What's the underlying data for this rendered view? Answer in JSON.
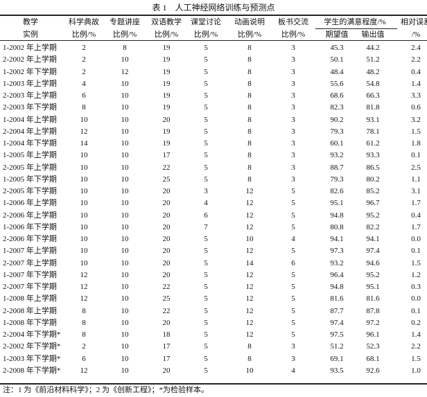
{
  "title": "表 1　人工神经网络训练与预测点",
  "table": {
    "header_row1": [
      "教学",
      "科学典故",
      "专题讲座",
      "双语教学",
      "课堂讨论",
      "动画说明",
      "板书交流",
      "学生的满意程度/%",
      "相对误差"
    ],
    "header_row2": [
      "实例",
      "比例/%",
      "比例/%",
      "比例/%",
      "比例/%",
      "比例/%",
      "比例/%",
      "期望值",
      "输出值",
      "/%"
    ],
    "rows": [
      [
        "1-2002 年上学期",
        "2",
        "8",
        "19",
        "5",
        "8",
        "3",
        "45.3",
        "44.2",
        "2.4"
      ],
      [
        "2-2002 年上学期",
        "2",
        "10",
        "19",
        "5",
        "8",
        "3",
        "50.1",
        "51.2",
        "2.2"
      ],
      [
        "1-2002 年下学期",
        "2",
        "12",
        "19",
        "5",
        "8",
        "3",
        "48.4",
        "48.2",
        "0.4"
      ],
      [
        "1-2003 年上学期",
        "4",
        "10",
        "19",
        "5",
        "8",
        "3",
        "55.6",
        "54.8",
        "1.4"
      ],
      [
        "2-2003 年上学期",
        "6",
        "10",
        "19",
        "5",
        "8",
        "3",
        "68.6",
        "66.3",
        "3.3"
      ],
      [
        "2-2003 年下学期",
        "8",
        "10",
        "19",
        "5",
        "8",
        "3",
        "82.3",
        "81.8",
        "0.6"
      ],
      [
        "1-2004 年上学期",
        "10",
        "10",
        "20",
        "5",
        "8",
        "3",
        "90.2",
        "93.1",
        "3.2"
      ],
      [
        "2-2004 年上学期",
        "12",
        "10",
        "19",
        "5",
        "8",
        "3",
        "79.3",
        "78.1",
        "1.5"
      ],
      [
        "1-2004 年下学期",
        "14",
        "10",
        "19",
        "5",
        "8",
        "3",
        "60.1",
        "61.2",
        "1.8"
      ],
      [
        "1-2005 年上学期",
        "10",
        "10",
        "17",
        "5",
        "8",
        "3",
        "93.2",
        "93.3",
        "0.1"
      ],
      [
        "2-2005 年上学期",
        "10",
        "10",
        "22",
        "5",
        "8",
        "3",
        "88.7",
        "86.5",
        "2.5"
      ],
      [
        "1-2005 年下学期",
        "10",
        "10",
        "25",
        "5",
        "8",
        "3",
        "79.3",
        "80.2",
        "1.1"
      ],
      [
        "2-2005 年下学期",
        "10",
        "10",
        "20",
        "3",
        "12",
        "5",
        "82.6",
        "85.2",
        "3.1"
      ],
      [
        "1-2006 年上学期",
        "10",
        "10",
        "20",
        "4",
        "12",
        "5",
        "95.1",
        "96.7",
        "1.7"
      ],
      [
        "2-2006 年上学期",
        "10",
        "10",
        "20",
        "6",
        "12",
        "5",
        "94.8",
        "95.2",
        "0.4"
      ],
      [
        "1-2006 年下学期",
        "10",
        "10",
        "20",
        "7",
        "12",
        "5",
        "80.8",
        "82.2",
        "1.7"
      ],
      [
        "2-2006 年下学期",
        "10",
        "10",
        "20",
        "5",
        "10",
        "4",
        "94.1",
        "94.1",
        "0.0"
      ],
      [
        "1-2007 年上学期",
        "10",
        "10",
        "20",
        "5",
        "12",
        "5",
        "97.3",
        "97.4",
        "0.1"
      ],
      [
        "2-2007 年上学期",
        "10",
        "10",
        "20",
        "5",
        "14",
        "6",
        "93.2",
        "94.6",
        "1.5"
      ],
      [
        "1-2007 年下学期",
        "12",
        "10",
        "20",
        "5",
        "12",
        "5",
        "96.4",
        "95.2",
        "1.2"
      ],
      [
        "2-2007 年下学期",
        "12",
        "10",
        "22",
        "5",
        "12",
        "5",
        "94.8",
        "95.1",
        "0.3"
      ],
      [
        "1-2008 年上学期",
        "12",
        "10",
        "25",
        "5",
        "12",
        "5",
        "81.6",
        "81.6",
        "0.0"
      ],
      [
        "2-2008 年上学期",
        "8",
        "10",
        "22",
        "5",
        "12",
        "5",
        "87.7",
        "87.8",
        "0.1"
      ],
      [
        "1-2008 年下学期",
        "8",
        "10",
        "20",
        "5",
        "12",
        "5",
        "97.4",
        "97.2",
        "0.2"
      ],
      [
        "2-2004 年下学期*",
        "8",
        "10",
        "18",
        "5",
        "12",
        "5",
        "97.5",
        "96.1",
        "1.4"
      ],
      [
        "2-2002 年下学期*",
        "2",
        "10",
        "17",
        "5",
        "8",
        "3",
        "51.2",
        "52.3",
        "2.2"
      ],
      [
        "1-2003 年下学期*",
        "6",
        "10",
        "17",
        "5",
        "8",
        "3",
        "69.1",
        "68.1",
        "1.5"
      ],
      [
        "2-2008 年下学期*",
        "12",
        "10",
        "20",
        "5",
        "10",
        "4",
        "93.5",
        "92.6",
        "1.0"
      ]
    ]
  },
  "note": "注：1 为《前沿材料科学》；2 为《创新工程》；*为检验样本。"
}
